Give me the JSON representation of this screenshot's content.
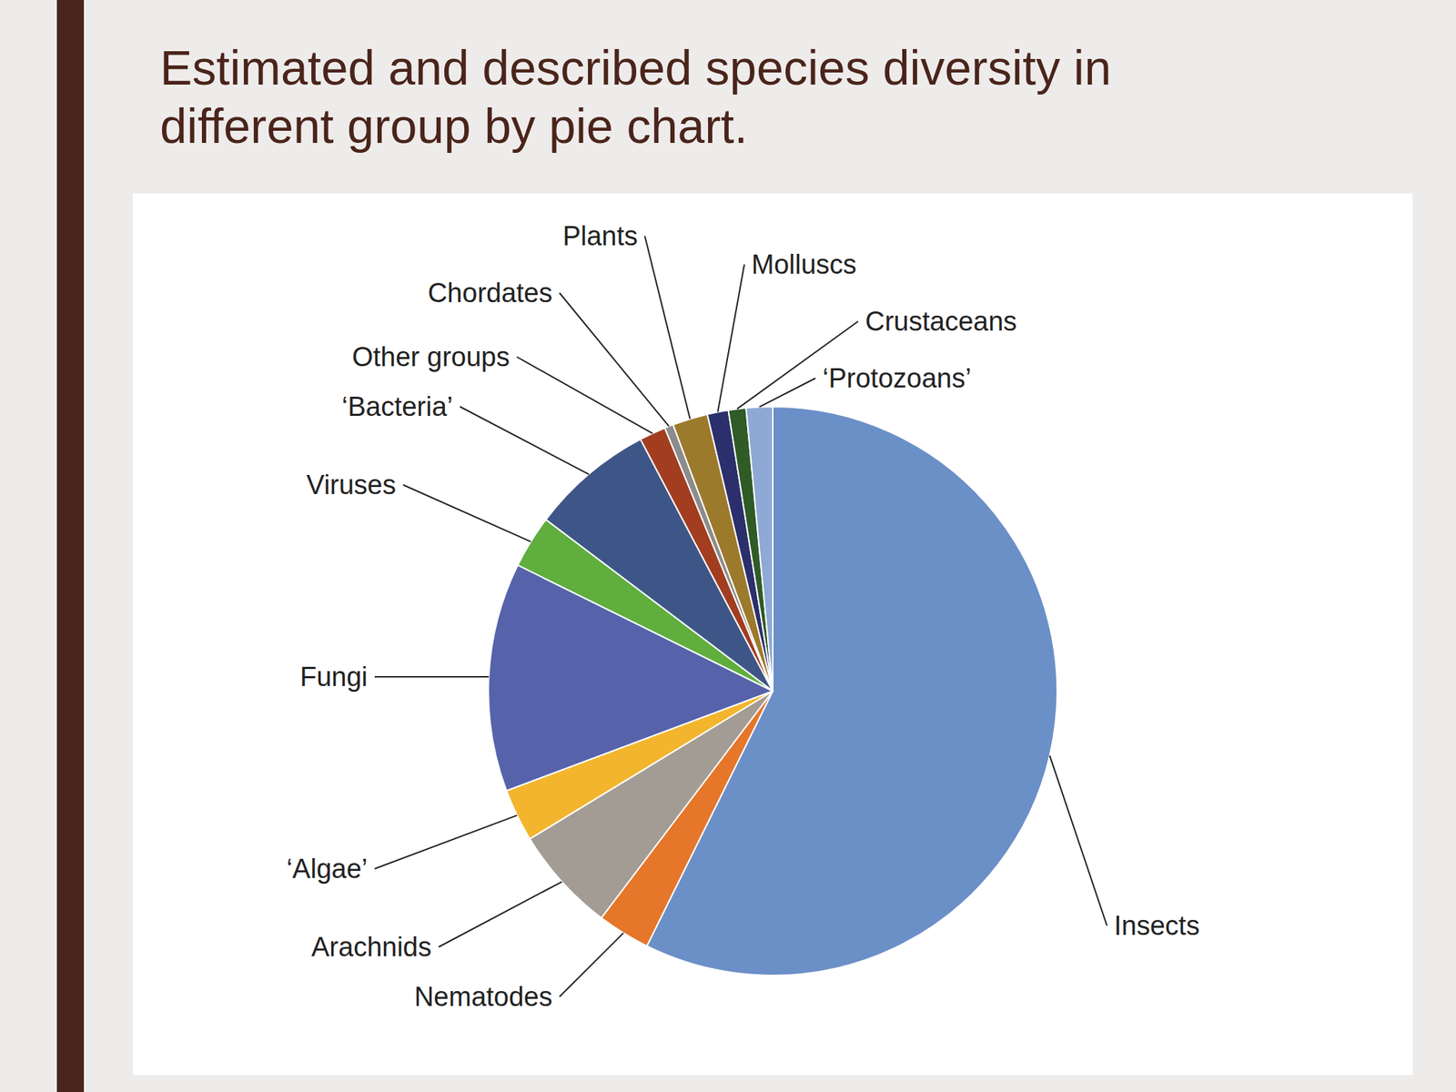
{
  "chart_data": {
    "type": "pie",
    "title": "Estimated and described species diversity in different group by pie chart.",
    "categories": [
      "Insects",
      "Nematodes",
      "Arachnids",
      "‘Algae’",
      "Fungi",
      "Viruses",
      "‘Bacteria’",
      "Other groups",
      "Chordates",
      "Plants",
      "Molluscs",
      "Crustaceans",
      "‘Protozoans’"
    ],
    "values": [
      57.3,
      3,
      6,
      3,
      13,
      3,
      7,
      1.5,
      0.5,
      2,
      1.2,
      1,
      1.5
    ],
    "colors": [
      "#6b8fc7",
      "#e5762a",
      "#a29c94",
      "#f3b52e",
      "#5663aa",
      "#5fae3e",
      "#3e5687",
      "#a23d20",
      "#8c8c8c",
      "#9c7a2c",
      "#2b2f6b",
      "#2f5b26",
      "#8ea9d5"
    ]
  }
}
